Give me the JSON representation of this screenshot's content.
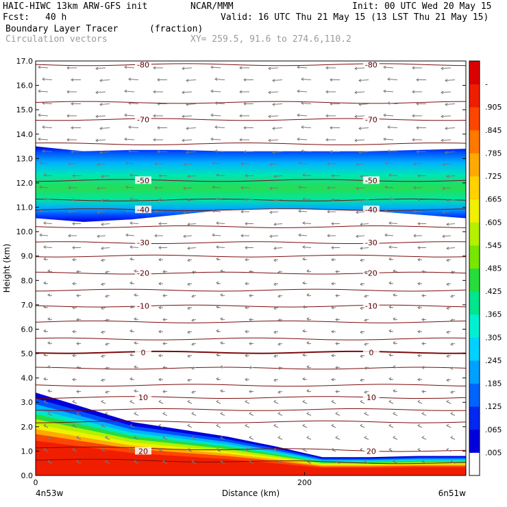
{
  "header": {
    "model": "HAIC-HIWC 13km ARW-GFS init",
    "org": "NCAR/MMM",
    "init": "Init: 00 UTC Wed 20 May 15",
    "fcst_label": "Fcst:",
    "fcst_value": "40 h",
    "valid": "Valid: 16 UTC Thu 21 May 15 (13 LST Thu 21 May 15)",
    "field": "Boundary Layer Tracer",
    "units": "(fraction)",
    "vectors": "Circulation vectors",
    "xy": "XY= 259.5, 91.6 to 274.6,110.2"
  },
  "chart_data": {
    "type": "heatmap",
    "title": "Boundary Layer Tracer",
    "ylabel": "Height (km)",
    "xlabel": "Distance (km)",
    "xlim": [
      0,
      320
    ],
    "ylim": [
      0,
      17
    ],
    "x_ticks": [
      {
        "value": 0,
        "label": "0"
      },
      {
        "value": 200,
        "label": "200"
      }
    ],
    "x_end_labels": {
      "left": "4n53w",
      "right": "6n51w"
    },
    "y_ticks": [
      {
        "value": 0,
        "label": "0.0"
      },
      {
        "value": 1,
        "label": "1.0"
      },
      {
        "value": 2,
        "label": "2.0"
      },
      {
        "value": 3,
        "label": "3.0"
      },
      {
        "value": 4,
        "label": "4.0"
      },
      {
        "value": 5,
        "label": "5.0"
      },
      {
        "value": 6,
        "label": "6.0"
      },
      {
        "value": 7,
        "label": "7.0"
      },
      {
        "value": 8,
        "label": "8.0"
      },
      {
        "value": 9,
        "label": "9.0"
      },
      {
        "value": 10,
        "label": "10.0"
      },
      {
        "value": 11,
        "label": "11.0"
      },
      {
        "value": 12,
        "label": "12.0"
      },
      {
        "value": 13,
        "label": "13.0"
      },
      {
        "value": 14,
        "label": "14.0"
      },
      {
        "value": 15,
        "label": "15.0"
      },
      {
        "value": 16,
        "label": "16.0"
      },
      {
        "value": 17,
        "label": "17.0"
      }
    ],
    "colorbar": {
      "labels": [
        ".005",
        ".065",
        ".125",
        ".185",
        ".245",
        ".305",
        ".365",
        ".425",
        ".485",
        ".545",
        ".605",
        ".665",
        ".725",
        ".785",
        ".845",
        ".905",
        "-"
      ],
      "colors": [
        "#ffffff",
        "#0000dc",
        "#0028f0",
        "#0064ff",
        "#00a0ff",
        "#00d2ff",
        "#00f0d2",
        "#00e68c",
        "#28dc3c",
        "#78e600",
        "#b4f000",
        "#f0f000",
        "#ffd200",
        "#ffaa00",
        "#ff7800",
        "#ff4600",
        "#f01e00",
        "#dc0000"
      ]
    },
    "tracer_regions": [
      {
        "name": "upper layer",
        "x": [
          0,
          320
        ],
        "bottom_km": [
          10.55,
          10.4,
          10.5,
          10.7,
          10.9,
          10.95,
          10.9,
          10.85,
          10.7,
          10.55
        ],
        "top_km": [
          13.5,
          13.3,
          13.35,
          13.35,
          13.3,
          13.3,
          13.3,
          13.3,
          13.35,
          13.4
        ],
        "peak_value": 0.35
      },
      {
        "name": "boundary layer",
        "x": [
          0,
          320
        ],
        "top_km": [
          3.4,
          2.8,
          2.2,
          1.9,
          1.6,
          1.2,
          0.75,
          0.75,
          0.8,
          0.8
        ],
        "peak_value": 0.95
      }
    ],
    "contour_series": {
      "name": "temperature contours",
      "units_label": "",
      "levels": [
        {
          "level": -80,
          "label": "-80",
          "height_km": 16.85
        },
        {
          "level": -70,
          "label": "-70",
          "height_km": 14.6
        },
        {
          "level": -50,
          "label": "-50",
          "height_km": 12.1
        },
        {
          "level": -40,
          "label": "-40",
          "height_km": 10.9
        },
        {
          "level": -30,
          "label": "-30",
          "height_km": 9.55
        },
        {
          "level": -20,
          "label": "-20",
          "height_km": 8.3
        },
        {
          "level": -10,
          "label": "-10",
          "height_km": 6.95
        },
        {
          "level": 0,
          "label": "0",
          "height_km": 5.05
        },
        {
          "level": 10,
          "label": "10",
          "height_km": 3.2
        },
        {
          "level": 20,
          "label": "20",
          "height_km": 1.0
        }
      ],
      "unlabeled_heights_km": [
        15.3,
        13.6,
        11.3,
        10.2,
        9.0,
        7.6,
        6.3,
        5.6,
        4.4,
        3.7,
        2.7,
        2.2,
        0.5
      ]
    },
    "vectors": {
      "note_visible": false
    }
  }
}
